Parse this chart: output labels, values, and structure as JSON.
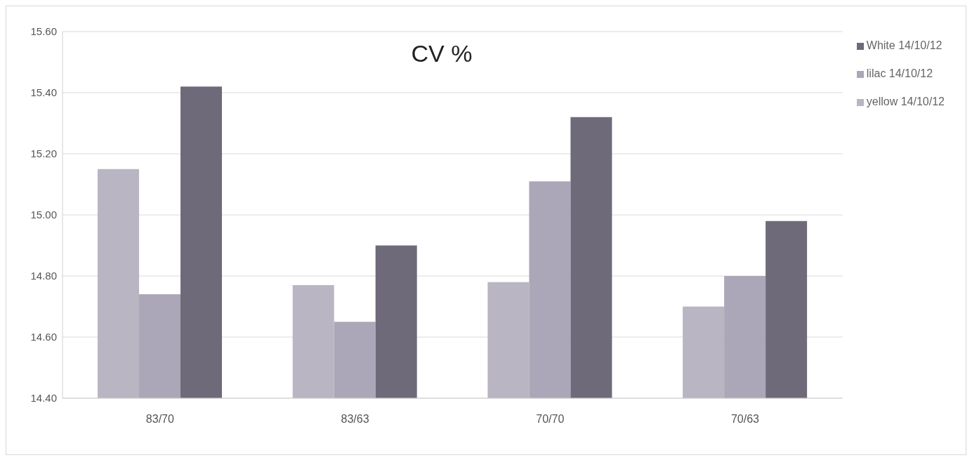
{
  "chart_data": {
    "type": "bar",
    "title": "CV %",
    "categories": [
      "83/70",
      "83/63",
      "70/70",
      "70/63"
    ],
    "series": [
      {
        "name": "yellow 14/10/12",
        "color": "#b9b5c2",
        "values": [
          15.15,
          14.77,
          14.78,
          14.7
        ]
      },
      {
        "name": "lilac 14/10/12",
        "color": "#aba7b9",
        "values": [
          14.74,
          14.65,
          15.11,
          14.8
        ]
      },
      {
        "name": "White 14/10/12",
        "color": "#6f6a7a",
        "values": [
          15.42,
          14.9,
          15.32,
          14.98
        ]
      }
    ],
    "ylim": [
      14.4,
      15.6
    ],
    "yticks": [
      {
        "value": 14.4,
        "label": "14.40"
      },
      {
        "value": 14.6,
        "label": "14.60"
      },
      {
        "value": 14.8,
        "label": "14.80"
      },
      {
        "value": 15.0,
        "label": "15.00"
      },
      {
        "value": 15.2,
        "label": "15.20"
      },
      {
        "value": 15.4,
        "label": "15.40"
      },
      {
        "value": 15.6,
        "label": "15.60"
      }
    ],
    "grid": "y",
    "legend": "top right"
  }
}
